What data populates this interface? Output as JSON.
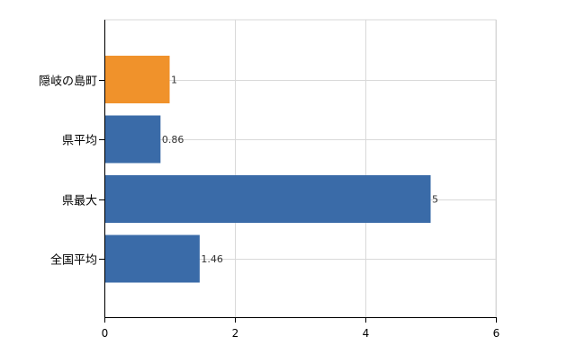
{
  "chart_data": {
    "type": "bar",
    "orientation": "horizontal",
    "categories": [
      "隠岐の島町",
      "県平均",
      "県最大",
      "全国平均"
    ],
    "values": [
      1,
      0.86,
      5,
      1.46
    ],
    "value_labels": [
      "1",
      "0.86",
      "5",
      "1.46"
    ],
    "bar_colors": [
      "#f0922b",
      "#3a6ba8",
      "#3a6ba8",
      "#3a6ba8"
    ],
    "xlim": [
      0,
      6
    ],
    "x_ticks": [
      0,
      2,
      4,
      6
    ],
    "grid": true,
    "legend": "none",
    "title": "",
    "xlabel": "",
    "ylabel": ""
  }
}
